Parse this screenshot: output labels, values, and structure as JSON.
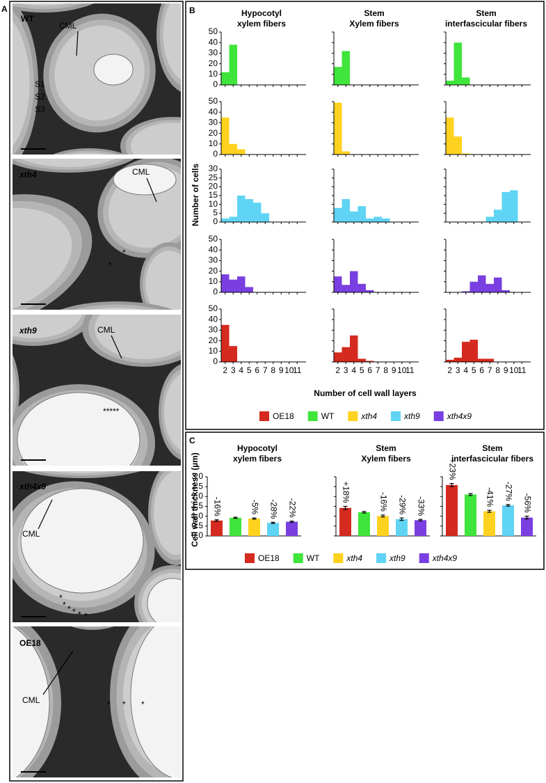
{
  "panel_a": {
    "label": "A",
    "images": [
      {
        "genotype": "WT",
        "labels": [
          "CML",
          "S1",
          "S2",
          "S3"
        ]
      },
      {
        "genotype": "xth4",
        "labels": [
          "CML",
          "*",
          "*"
        ]
      },
      {
        "genotype": "xth9",
        "labels": [
          "CML",
          "*****"
        ]
      },
      {
        "genotype": "xth4x9",
        "labels": [
          "CML",
          "*",
          "*",
          "*",
          "*",
          "*",
          "*"
        ]
      },
      {
        "genotype": "OE18",
        "labels": [
          "CML",
          "*",
          "*",
          "*"
        ]
      }
    ]
  },
  "chart_data": [
    {
      "type": "histogram",
      "panel_label": "B",
      "columns": [
        [
          "Hypocotyl",
          "xylem fibers"
        ],
        [
          "Stem",
          "Xylem fibers"
        ],
        [
          "Stem",
          "interfascicular fibers"
        ]
      ],
      "ylabel": "Number of cells",
      "xlabel": "Number of cell wall layers",
      "x": [
        2,
        3,
        4,
        5,
        6,
        7,
        8,
        9,
        10,
        11
      ],
      "xlim": [
        1.5,
        11.5
      ],
      "xticks": [
        2,
        3,
        4,
        5,
        6,
        7,
        8,
        9,
        10,
        11
      ],
      "series": [
        {
          "name": "WT",
          "color": "#3fe53a",
          "italic": false,
          "ylim": [
            0,
            50
          ],
          "yticks": [
            0,
            10,
            20,
            30,
            40,
            50
          ],
          "values": [
            [
              12,
              38,
              0,
              0,
              0,
              0,
              0,
              0,
              0,
              0
            ],
            [
              17,
              32,
              0,
              0,
              0,
              0,
              0,
              0,
              0,
              0
            ],
            [
              4,
              40,
              7,
              0,
              0,
              0,
              0,
              0,
              0,
              0
            ]
          ]
        },
        {
          "name": "xth4",
          "color": "#ffd21f",
          "italic": true,
          "ylim": [
            0,
            50
          ],
          "yticks": [
            0,
            10,
            20,
            30,
            40,
            50
          ],
          "values": [
            [
              35,
              10,
              5,
              0,
              0,
              0,
              0,
              0,
              0,
              0
            ],
            [
              49,
              3,
              0,
              0,
              0,
              0,
              0,
              0,
              0,
              0
            ],
            [
              35,
              17,
              1,
              0,
              0,
              0,
              0,
              0,
              0,
              0
            ]
          ]
        },
        {
          "name": "xth9",
          "color": "#5fd4f4",
          "italic": true,
          "ylim": [
            0,
            30
          ],
          "yticks": [
            0,
            5,
            10,
            15,
            20,
            25,
            30
          ],
          "values": [
            [
              2,
              3,
              15,
              13,
              11,
              5,
              0,
              0,
              0,
              0
            ],
            [
              8,
              13,
              6,
              9,
              2,
              3,
              2,
              0,
              0,
              0
            ],
            [
              0,
              0,
              0,
              0,
              0,
              3,
              7,
              17,
              18,
              0
            ]
          ]
        },
        {
          "name": "xth4x9",
          "color": "#7a3fe0",
          "italic": true,
          "ylim": [
            0,
            50
          ],
          "yticks": [
            0,
            10,
            20,
            30,
            40,
            50
          ],
          "values": [
            [
              17,
              12,
              15,
              5,
              0,
              0,
              0,
              0,
              0,
              0
            ],
            [
              15,
              7,
              20,
              8,
              2,
              0,
              0,
              0,
              0,
              0
            ],
            [
              0,
              0,
              1,
              10,
              16,
              8,
              14,
              2,
              0,
              0
            ]
          ]
        },
        {
          "name": "OE18",
          "color": "#d42a1f",
          "italic": false,
          "ylim": [
            0,
            50
          ],
          "yticks": [
            0,
            10,
            20,
            30,
            40,
            50
          ],
          "values": [
            [
              35,
              15,
              0,
              0,
              0,
              0,
              0,
              0,
              0,
              0
            ],
            [
              9,
              14,
              25,
              3,
              1,
              0,
              0,
              0,
              0,
              0
            ],
            [
              2,
              4,
              19,
              21,
              3,
              3,
              0,
              0,
              0,
              0
            ]
          ]
        }
      ]
    },
    {
      "type": "bar",
      "panel_label": "C",
      "categories": [
        [
          "Hypocotyl",
          "xylem fibers"
        ],
        [
          "Stem",
          "Xylem fibers"
        ],
        [
          "Stem",
          "interfascicular fibers"
        ]
      ],
      "ylabel": "Cell wall thickness (µm)",
      "ylim": [
        0,
        3
      ],
      "yticks": [
        {
          "value": 0,
          "label": "0.0"
        },
        {
          "value": 0.5,
          "label": "0.5"
        },
        {
          "value": 1,
          "label": "1.0"
        },
        {
          "value": 1.5,
          "label": "1.5"
        },
        {
          "value": 2,
          "label": "2.0"
        },
        {
          "value": 2.5,
          "label": "2.5"
        },
        {
          "value": 3,
          "label": "3.0"
        }
      ],
      "series": [
        {
          "name": "OE18",
          "color": "#d42a1f",
          "italic": false,
          "values": [
            0.78,
            1.42,
            2.58
          ],
          "errors": [
            0.04,
            0.08,
            0.08
          ],
          "change_labels": [
            "-16%",
            "+18%",
            "+23%"
          ]
        },
        {
          "name": "WT",
          "color": "#3fe53a",
          "italic": false,
          "values": [
            0.92,
            1.2,
            2.1
          ],
          "errors": [
            0.03,
            0.04,
            0.05
          ],
          "change_labels": [
            null,
            null,
            null
          ]
        },
        {
          "name": "xth4",
          "color": "#ffd21f",
          "italic": true,
          "values": [
            0.88,
            1.01,
            1.25
          ],
          "errors": [
            0.03,
            0.05,
            0.05
          ],
          "change_labels": [
            "-5%",
            "-16%",
            "-41%"
          ]
        },
        {
          "name": "xth9",
          "color": "#5fd4f4",
          "italic": true,
          "values": [
            0.66,
            0.85,
            1.55
          ],
          "errors": [
            0.03,
            0.06,
            0.04
          ],
          "change_labels": [
            "-28%",
            "-29%",
            "-27%"
          ]
        },
        {
          "name": "xth4x9",
          "color": "#7a3fe0",
          "italic": true,
          "values": [
            0.72,
            0.8,
            0.93
          ],
          "errors": [
            0.03,
            0.04,
            0.07
          ],
          "change_labels": [
            "-22%",
            "-33%",
            "-56%"
          ]
        }
      ]
    }
  ]
}
